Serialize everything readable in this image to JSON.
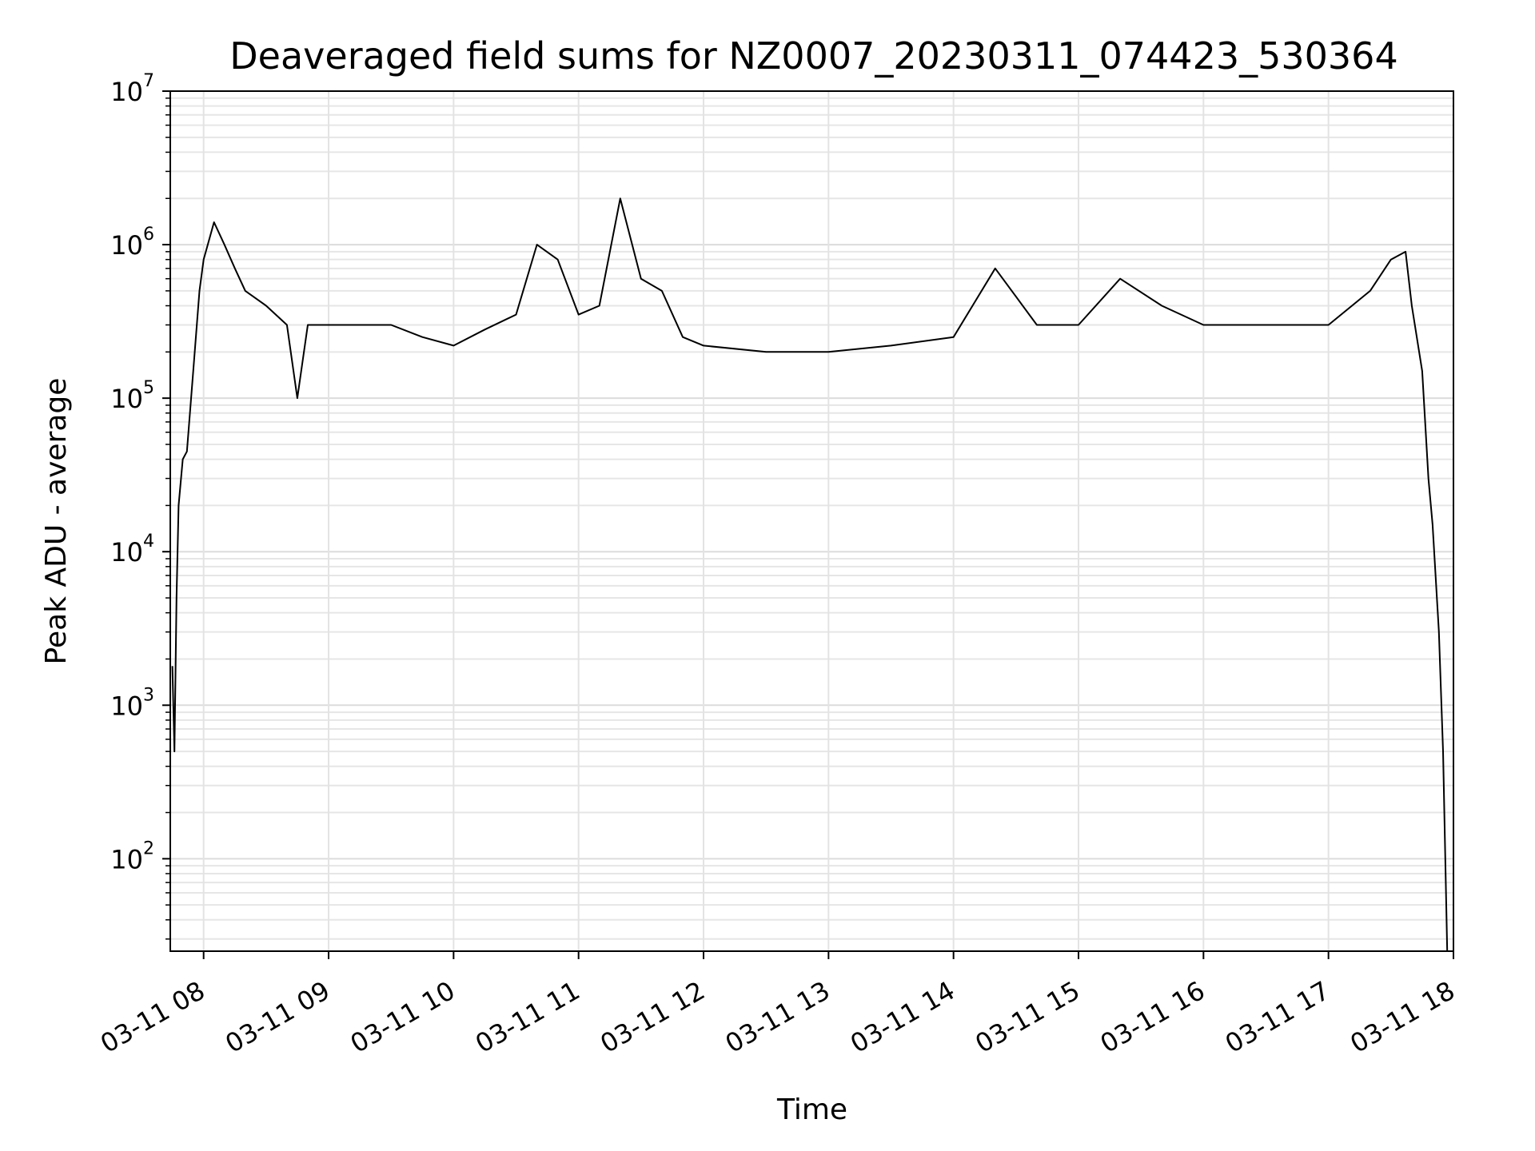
{
  "chart_data": {
    "type": "line",
    "title": "Deaveraged field sums for NZ0007_20230311_074423_530364",
    "xlabel": "Time",
    "ylabel": "Peak ADU - average",
    "xlim": [
      "2023-03-11 07:44",
      "2023-03-11 18:00"
    ],
    "ylim": [
      25,
      10000000
    ],
    "y_scale": "log",
    "grid": true,
    "x_ticks": [
      {
        "value": "2023-03-11 08:00",
        "label": "03-11 08"
      },
      {
        "value": "2023-03-11 09:00",
        "label": "03-11 09"
      },
      {
        "value": "2023-03-11 10:00",
        "label": "03-11 10"
      },
      {
        "value": "2023-03-11 11:00",
        "label": "03-11 11"
      },
      {
        "value": "2023-03-11 12:00",
        "label": "03-11 12"
      },
      {
        "value": "2023-03-11 13:00",
        "label": "03-11 13"
      },
      {
        "value": "2023-03-11 14:00",
        "label": "03-11 14"
      },
      {
        "value": "2023-03-11 15:00",
        "label": "03-11 15"
      },
      {
        "value": "2023-03-11 16:00",
        "label": "03-11 16"
      },
      {
        "value": "2023-03-11 17:00",
        "label": "03-11 17"
      },
      {
        "value": "2023-03-11 18:00",
        "label": "03-11 18"
      }
    ],
    "y_ticks": [
      {
        "value": 100,
        "base": "10",
        "exp": "2"
      },
      {
        "value": 1000,
        "base": "10",
        "exp": "3"
      },
      {
        "value": 10000,
        "base": "10",
        "exp": "4"
      },
      {
        "value": 100000,
        "base": "10",
        "exp": "5"
      },
      {
        "value": 1000000,
        "base": "10",
        "exp": "6"
      },
      {
        "value": 10000000,
        "base": "10",
        "exp": "7"
      }
    ],
    "series": [
      {
        "color": "#000000",
        "points": [
          [
            "2023-03-11 07:45",
            1800
          ],
          [
            "2023-03-11 07:46",
            500
          ],
          [
            "2023-03-11 07:47",
            5000
          ],
          [
            "2023-03-11 07:48",
            20000
          ],
          [
            "2023-03-11 07:50",
            40000
          ],
          [
            "2023-03-11 07:52",
            45000
          ],
          [
            "2023-03-11 07:55",
            150000
          ],
          [
            "2023-03-11 07:58",
            500000
          ],
          [
            "2023-03-11 08:00",
            800000
          ],
          [
            "2023-03-11 08:05",
            1400000
          ],
          [
            "2023-03-11 08:10",
            1000000
          ],
          [
            "2023-03-11 08:15",
            700000
          ],
          [
            "2023-03-11 08:20",
            500000
          ],
          [
            "2023-03-11 08:30",
            400000
          ],
          [
            "2023-03-11 08:40",
            300000
          ],
          [
            "2023-03-11 08:45",
            100000
          ],
          [
            "2023-03-11 08:50",
            300000
          ],
          [
            "2023-03-11 09:00",
            300000
          ],
          [
            "2023-03-11 09:15",
            300000
          ],
          [
            "2023-03-11 09:30",
            300000
          ],
          [
            "2023-03-11 09:45",
            250000
          ],
          [
            "2023-03-11 10:00",
            220000
          ],
          [
            "2023-03-11 10:15",
            280000
          ],
          [
            "2023-03-11 10:30",
            350000
          ],
          [
            "2023-03-11 10:40",
            1000000
          ],
          [
            "2023-03-11 10:50",
            800000
          ],
          [
            "2023-03-11 11:00",
            350000
          ],
          [
            "2023-03-11 11:10",
            400000
          ],
          [
            "2023-03-11 11:20",
            2000000
          ],
          [
            "2023-03-11 11:30",
            600000
          ],
          [
            "2023-03-11 11:40",
            500000
          ],
          [
            "2023-03-11 11:50",
            250000
          ],
          [
            "2023-03-11 12:00",
            220000
          ],
          [
            "2023-03-11 12:30",
            200000
          ],
          [
            "2023-03-11 13:00",
            200000
          ],
          [
            "2023-03-11 13:30",
            220000
          ],
          [
            "2023-03-11 14:00",
            250000
          ],
          [
            "2023-03-11 14:20",
            700000
          ],
          [
            "2023-03-11 14:40",
            300000
          ],
          [
            "2023-03-11 15:00",
            300000
          ],
          [
            "2023-03-11 15:20",
            600000
          ],
          [
            "2023-03-11 15:40",
            400000
          ],
          [
            "2023-03-11 16:00",
            300000
          ],
          [
            "2023-03-11 16:30",
            300000
          ],
          [
            "2023-03-11 17:00",
            300000
          ],
          [
            "2023-03-11 17:20",
            500000
          ],
          [
            "2023-03-11 17:30",
            800000
          ],
          [
            "2023-03-11 17:37",
            900000
          ],
          [
            "2023-03-11 17:40",
            400000
          ],
          [
            "2023-03-11 17:45",
            150000
          ],
          [
            "2023-03-11 17:48",
            30000
          ],
          [
            "2023-03-11 17:50",
            15000
          ],
          [
            "2023-03-11 17:53",
            3000
          ],
          [
            "2023-03-11 17:55",
            500
          ],
          [
            "2023-03-11 17:57",
            25
          ]
        ]
      }
    ]
  }
}
